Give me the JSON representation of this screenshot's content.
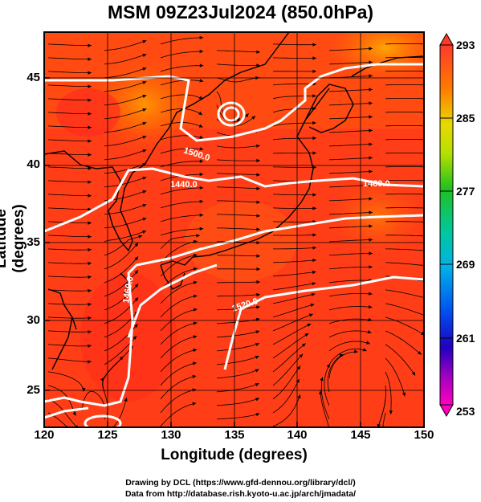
{
  "title": "MSM 09Z23Jul2024 (850.0hPa)",
  "xlabel": "Longitude (degrees)",
  "ylabel": "Latitude  (degrees)",
  "xticks": [
    "120",
    "125",
    "130",
    "135",
    "140",
    "145",
    "150"
  ],
  "yticks": [
    "25",
    "30",
    "35",
    "40",
    "45"
  ],
  "colorbar": [
    "293",
    "285",
    "277",
    "269",
    "261",
    "253"
  ],
  "contour_labels": [
    "1500.0",
    "1440.0",
    "1480.0",
    "1460.0",
    "1520.0"
  ],
  "credit_line1": "Drawing by DCL (https://www.gfd-dennou.org/library/dcl/)",
  "credit_line2": "Data from http://database.rish.kyoto-u.ac.jp/arch/jmadata/",
  "map_extent": {
    "lon": [
      120,
      150
    ],
    "lat": [
      22.4,
      47.6
    ]
  },
  "colors": {
    "field_base": "#ff3b14",
    "field_warm": "#ff6a00",
    "contour": "#ffffff",
    "streamline": "#000000"
  }
}
